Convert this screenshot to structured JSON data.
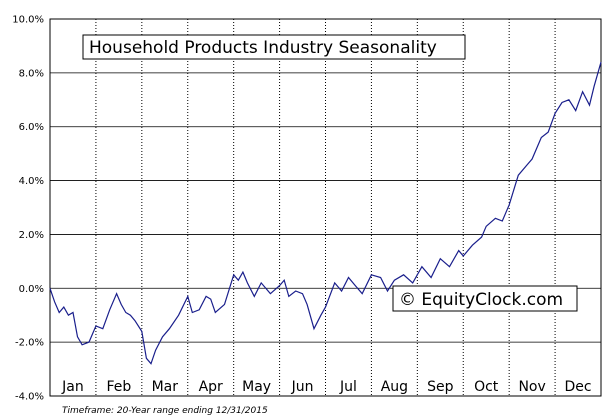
{
  "chart_data": {
    "type": "line",
    "title": "Household Products Industry Seasonality",
    "watermark": "© EquityClock.com",
    "footnote": "Timeframe: 20-Year range ending 12/31/2015",
    "ylim": [
      -4,
      10
    ],
    "y_ticks": [
      -4,
      -2,
      0,
      2,
      4,
      6,
      8,
      10
    ],
    "y_tick_labels": [
      "-4.0%",
      "-2.0%",
      "0.0%",
      "2.0%",
      "4.0%",
      "6.0%",
      "8.0%",
      "10.0%"
    ],
    "x_range": [
      0,
      12
    ],
    "x_labels": [
      "Jan",
      "Feb",
      "Mar",
      "Apr",
      "May",
      "Jun",
      "Jul",
      "Aug",
      "Sep",
      "Oct",
      "Nov",
      "Dec"
    ],
    "grid": true,
    "line_color": "#1a1f8c",
    "series": [
      {
        "x": [
          0.0,
          0.1,
          0.2,
          0.3,
          0.4,
          0.5,
          0.6,
          0.7,
          0.85,
          1.0,
          1.15,
          1.3,
          1.45,
          1.55,
          1.65,
          1.75,
          1.85,
          2.0,
          2.1,
          2.2,
          2.3,
          2.45,
          2.6,
          2.8,
          3.0,
          3.1,
          3.25,
          3.4,
          3.5,
          3.6,
          3.8,
          4.0,
          4.1,
          4.2,
          4.3,
          4.45,
          4.6,
          4.8,
          5.0,
          5.1,
          5.2,
          5.35,
          5.5,
          5.6,
          5.75,
          5.9,
          6.0,
          6.2,
          6.35,
          6.5,
          6.65,
          6.8,
          7.0,
          7.2,
          7.35,
          7.5,
          7.7,
          7.9,
          8.1,
          8.3,
          8.5,
          8.7,
          8.9,
          9.0,
          9.2,
          9.4,
          9.5,
          9.7,
          9.85,
          10.0,
          10.2,
          10.4,
          10.5,
          10.7,
          10.85,
          11.0,
          11.15,
          11.3,
          11.45,
          11.6,
          11.75,
          11.85,
          11.95,
          12.0
        ],
        "y": [
          0.0,
          -0.5,
          -0.9,
          -0.7,
          -1.0,
          -0.9,
          -1.8,
          -2.1,
          -2.0,
          -1.4,
          -1.5,
          -0.8,
          -0.2,
          -0.6,
          -0.9,
          -1.0,
          -1.2,
          -1.6,
          -2.6,
          -2.8,
          -2.3,
          -1.8,
          -1.5,
          -1.0,
          -0.3,
          -0.9,
          -0.8,
          -0.3,
          -0.4,
          -0.9,
          -0.6,
          0.5,
          0.3,
          0.6,
          0.2,
          -0.3,
          0.2,
          -0.2,
          0.1,
          0.3,
          -0.3,
          -0.1,
          -0.2,
          -0.6,
          -1.5,
          -1.0,
          -0.7,
          0.2,
          -0.1,
          0.4,
          0.1,
          -0.2,
          0.5,
          0.4,
          -0.1,
          0.3,
          0.5,
          0.2,
          0.8,
          0.4,
          1.1,
          0.8,
          1.4,
          1.2,
          1.6,
          1.9,
          2.3,
          2.6,
          2.5,
          3.1,
          4.2,
          4.6,
          4.8,
          5.6,
          5.8,
          6.5,
          6.9,
          7.0,
          6.6,
          7.3,
          6.8,
          7.5,
          8.1,
          8.4
        ]
      }
    ]
  }
}
